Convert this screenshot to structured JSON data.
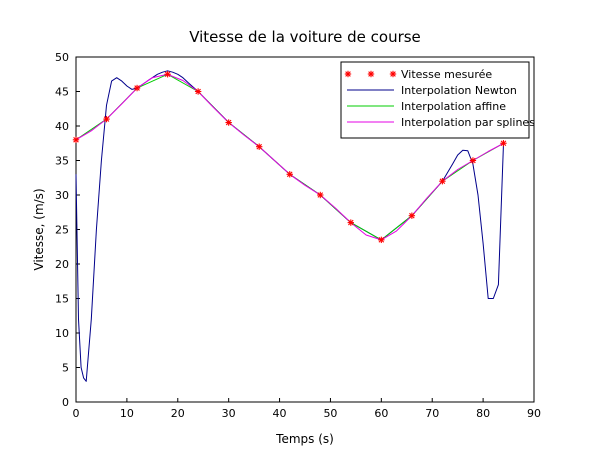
{
  "chart_data": {
    "type": "line",
    "title": "Vitesse de la voiture de course",
    "xlabel": "Temps (s)",
    "ylabel": "Vitesse, (m/s)",
    "xlim": [
      0,
      90
    ],
    "ylim": [
      0,
      50
    ],
    "x_ticks": [
      "0",
      "10",
      "20",
      "30",
      "40",
      "50",
      "60",
      "70",
      "80",
      "90"
    ],
    "y_ticks": [
      "0",
      "5",
      "10",
      "15",
      "20",
      "25",
      "30",
      "35",
      "40",
      "45",
      "50"
    ],
    "grid": false,
    "legend_position": "top-right",
    "series": [
      {
        "name": "Vitesse mesurée",
        "kind": "markers",
        "color": "#ff0000",
        "x": [
          0,
          6,
          12,
          18,
          24,
          30,
          36,
          42,
          48,
          54,
          60,
          66,
          72,
          78,
          84
        ],
        "y": [
          38,
          41,
          45.5,
          47.5,
          45,
          40.5,
          37,
          33,
          30,
          26,
          23.5,
          27,
          32,
          35,
          37.5
        ]
      },
      {
        "name": "Interpolation Newton",
        "kind": "line",
        "color": "#00008b",
        "x": [
          0,
          0.5,
          1,
          1.5,
          2,
          3,
          4,
          5,
          6,
          7,
          8,
          9,
          10,
          11,
          12,
          13,
          14,
          15,
          16,
          17,
          18,
          19,
          20,
          21,
          22,
          24,
          30,
          36,
          42,
          48,
          54,
          60,
          66,
          72,
          74,
          75,
          76,
          77,
          78,
          79,
          80,
          81,
          82,
          83,
          84
        ],
        "y": [
          33,
          12,
          5,
          3.5,
          3,
          12,
          25,
          35,
          43,
          46.5,
          47,
          46.5,
          45.8,
          45.3,
          45.5,
          46,
          46.5,
          47,
          47.5,
          47.8,
          48,
          47.8,
          47.5,
          47,
          46.3,
          45,
          40.5,
          37,
          33,
          30,
          26,
          23.5,
          27,
          32,
          34.5,
          35.8,
          36.5,
          36.4,
          34.5,
          30,
          23,
          15,
          15,
          17,
          37.5
        ]
      },
      {
        "name": "Interpolation affine",
        "kind": "line",
        "color": "#00cc00",
        "x": [
          0,
          6,
          12,
          18,
          24,
          30,
          36,
          42,
          48,
          54,
          60,
          66,
          72,
          78,
          84
        ],
        "y": [
          38,
          41,
          45.5,
          47.5,
          45,
          40.5,
          37,
          33,
          30,
          26,
          23.5,
          27,
          32,
          35,
          37.5
        ]
      },
      {
        "name": "Interpolation par splines",
        "kind": "line",
        "color": "#e600e6",
        "x": [
          0,
          3,
          6,
          9,
          12,
          15,
          18,
          21,
          24,
          27,
          30,
          33,
          36,
          39,
          42,
          45,
          48,
          51,
          54,
          57,
          60,
          63,
          66,
          69,
          72,
          75,
          78,
          81,
          84
        ],
        "y": [
          38,
          39.3,
          41,
          43.2,
          45.5,
          47,
          47.5,
          46.6,
          45,
          42.7,
          40.5,
          38.7,
          37,
          35,
          33,
          31.4,
          30,
          28.1,
          26,
          24.2,
          23.5,
          24.8,
          27,
          29.6,
          32,
          33.7,
          35,
          36.3,
          37.5
        ]
      }
    ]
  }
}
